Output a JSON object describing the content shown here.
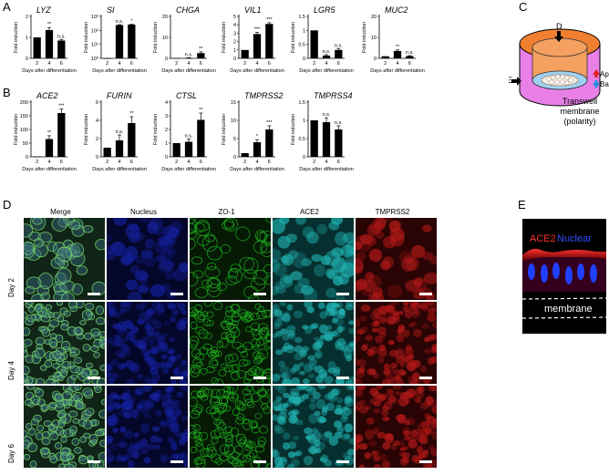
{
  "panels": {
    "A": "A",
    "B": "B",
    "C": "C",
    "D": "D",
    "E": "E"
  },
  "bar_xlabel": "Days after differentiation",
  "bar_ylabel": "Fold induction",
  "charts_A": [
    {
      "title": "LYZ",
      "categories": [
        "2",
        "4",
        "6"
      ],
      "values": [
        1.0,
        1.35,
        0.85
      ],
      "errors": [
        0,
        0.12,
        0.05
      ],
      "ylim": [
        0,
        2
      ],
      "yticks": [
        0,
        1,
        2
      ],
      "yticklabels": [
        "0",
        "1",
        "2"
      ],
      "sig": [
        "",
        "**",
        "n.s."
      ]
    },
    {
      "title": "SI",
      "categories": [
        "2",
        "4",
        "6"
      ],
      "values": [
        1,
        240,
        260
      ],
      "errors": [
        0,
        15,
        15
      ],
      "ylim": [
        1,
        1000
      ],
      "log": true,
      "yticks": [
        1,
        10,
        100,
        1000
      ],
      "yticklabels": [
        "10⁰",
        "10¹",
        "10²",
        "10³"
      ],
      "sig": [
        "",
        "n.s.",
        "*"
      ]
    },
    {
      "title": "CHGA",
      "categories": [
        "2",
        "4",
        "6"
      ],
      "values": [
        0.1,
        0.2,
        2.5
      ],
      "errors": [
        0,
        0.1,
        0.6
      ],
      "ylim": [
        0,
        20
      ],
      "yticks": [
        0,
        10,
        20
      ],
      "yticklabels": [
        "0",
        "10",
        "20"
      ],
      "sig": [
        "",
        "n.s.",
        "**"
      ]
    },
    {
      "title": "VIL1",
      "categories": [
        "2",
        "4",
        "6"
      ],
      "values": [
        1,
        2.9,
        4.1
      ],
      "errors": [
        0,
        0.2,
        0.15
      ],
      "ylim": [
        0,
        5
      ],
      "yticks": [
        0,
        1,
        2,
        3,
        4,
        5
      ],
      "yticklabels": [
        "0",
        "1",
        "2",
        "3",
        "4",
        "5"
      ],
      "sig": [
        "",
        "***",
        "***"
      ]
    },
    {
      "title": "LGR5",
      "categories": [
        "2",
        "4",
        "6"
      ],
      "values": [
        1,
        0.1,
        0.3
      ],
      "errors": [
        0,
        0.03,
        0.05
      ],
      "ylim": [
        0,
        1.5
      ],
      "yticks": [
        0,
        0.5,
        1,
        1.5
      ],
      "yticklabels": [
        "0",
        "0.5",
        "1",
        "1.5"
      ],
      "sig": [
        "",
        "n.s.",
        "n.s."
      ]
    },
    {
      "title": "MUC2",
      "categories": [
        "2",
        "4",
        "6"
      ],
      "values": [
        1,
        3.5,
        1.1
      ],
      "errors": [
        0,
        0.5,
        0.2
      ],
      "ylim": [
        0,
        20
      ],
      "yticks": [
        0,
        10,
        20
      ],
      "yticklabels": [
        "0",
        "10",
        "20"
      ],
      "sig": [
        "",
        "**",
        "n.s."
      ]
    }
  ],
  "charts_B": [
    {
      "title": "ACE2",
      "categories": [
        "2",
        "4",
        "6"
      ],
      "values": [
        1,
        65,
        160
      ],
      "errors": [
        0,
        12,
        15
      ],
      "ylim": [
        0,
        200
      ],
      "yticks": [
        0,
        50,
        100,
        150,
        200
      ],
      "yticklabels": [
        "0",
        "50",
        "100",
        "150",
        "200"
      ],
      "sig": [
        "",
        "**",
        "***"
      ]
    },
    {
      "title": "FURIN",
      "categories": [
        "2",
        "4",
        "6"
      ],
      "values": [
        1,
        1.8,
        3.7
      ],
      "errors": [
        0,
        0.6,
        0.7
      ],
      "ylim": [
        0,
        6
      ],
      "yticks": [
        0,
        2,
        4,
        6
      ],
      "yticklabels": [
        "0",
        "2",
        "4",
        "6"
      ],
      "sig": [
        "",
        "n.s.",
        "**"
      ]
    },
    {
      "title": "CTSL",
      "categories": [
        "2",
        "4",
        "6"
      ],
      "values": [
        1,
        1.1,
        2.7
      ],
      "errors": [
        0,
        0.2,
        0.5
      ],
      "ylim": [
        0,
        4
      ],
      "yticks": [
        0,
        1,
        2,
        3,
        4
      ],
      "yticklabels": [
        "0",
        "1",
        "2",
        "3",
        "4"
      ],
      "sig": [
        "",
        "n.s.",
        "**"
      ]
    },
    {
      "title": "TMPRSS2",
      "categories": [
        "2",
        "4",
        "6"
      ],
      "values": [
        1,
        4,
        7.5
      ],
      "errors": [
        0,
        0.7,
        1.0
      ],
      "ylim": [
        0,
        15
      ],
      "yticks": [
        0,
        5,
        10,
        15
      ],
      "yticklabels": [
        "0",
        "5",
        "10",
        "15"
      ],
      "sig": [
        "",
        "*",
        "***"
      ]
    },
    {
      "title": "TMPRSS4",
      "categories": [
        "2",
        "4",
        "6"
      ],
      "values": [
        1,
        0.95,
        0.75
      ],
      "errors": [
        0,
        0.12,
        0.1
      ],
      "ylim": [
        0,
        1.5
      ],
      "yticks": [
        0,
        0.5,
        1,
        1.5
      ],
      "yticklabels": [
        "0",
        "0.5",
        "1",
        "1.5"
      ],
      "sig": [
        "",
        "n.s.",
        "n.s."
      ]
    }
  ],
  "diagram_C": {
    "top_arrow": "D",
    "side_arrow": "E",
    "apical": "Apical",
    "basal": "Basal",
    "caption_line1": "Transwell",
    "caption_line2": "membrane",
    "caption_line3": "(polarity)"
  },
  "microscopy_D": {
    "columns": [
      "Merge",
      "Nucleus",
      "ZO-1",
      "ACE2",
      "TMPRSS2"
    ],
    "rows": [
      "Day 2",
      "Day 4",
      "Day 6"
    ]
  },
  "section_E": {
    "ace2": "ACE2",
    "nuclear": "Nuclear",
    "membrane": "membrane"
  },
  "colors": {
    "bar": "#000000",
    "merge": "#3a7a6a",
    "nucleus": "#14209a",
    "zo1": "#1fb01f",
    "ace2": "#20b0b0",
    "tmprss2": "#b01818"
  }
}
